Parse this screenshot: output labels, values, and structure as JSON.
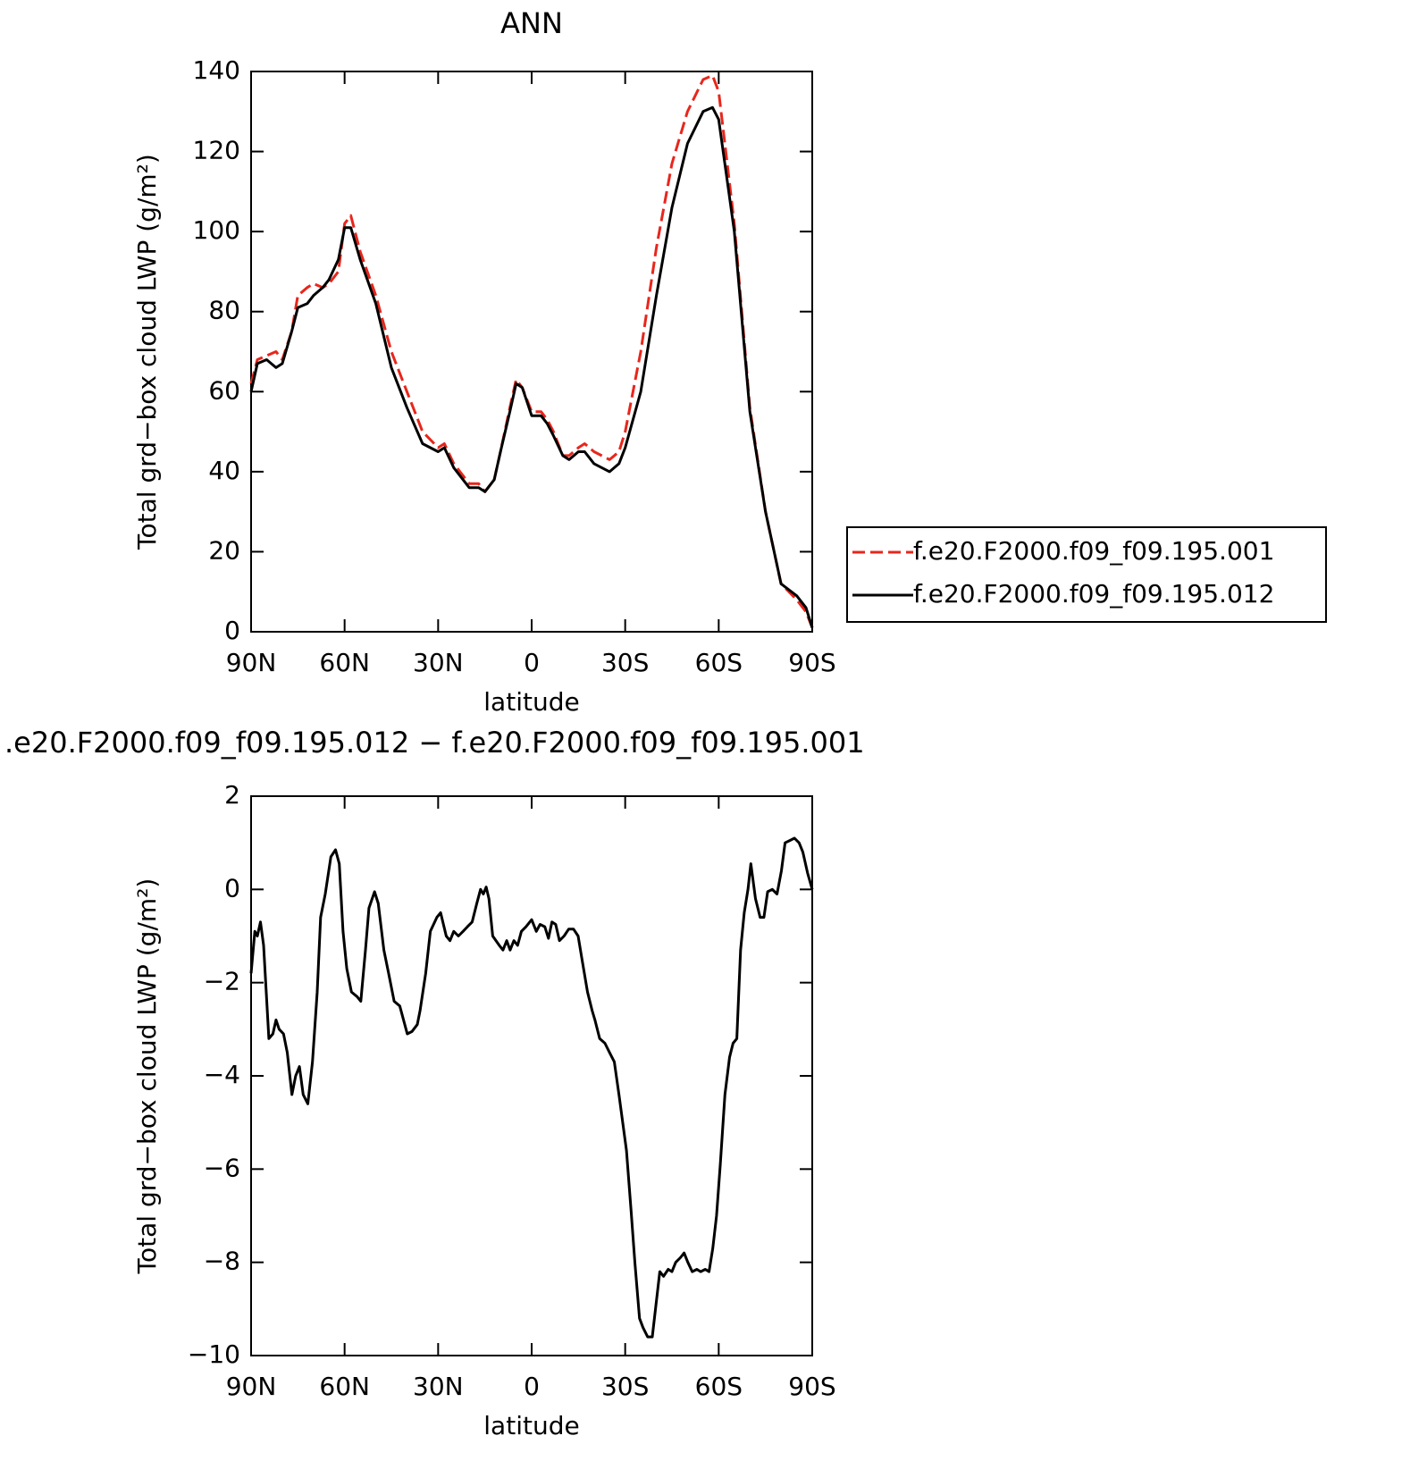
{
  "chart_data": [
    {
      "type": "line",
      "title": "ANN",
      "xlabel": "latitude",
      "ylabel": "Total grd−box cloud LWP (g/m²)",
      "x": [
        90,
        88,
        85,
        82,
        80,
        77,
        75,
        72,
        70,
        67,
        65,
        62,
        60,
        58,
        55,
        50,
        45,
        40,
        35,
        30,
        28,
        25,
        20,
        17,
        15,
        12,
        10,
        7,
        5,
        3,
        0,
        -3,
        -5,
        -7,
        -10,
        -12,
        -15,
        -17,
        -20,
        -25,
        -28,
        -30,
        -35,
        -40,
        -45,
        -50,
        -55,
        -58,
        -60,
        -65,
        -70,
        -75,
        -80,
        -85,
        -88,
        -90
      ],
      "series": [
        {
          "name": "f.e20.F2000.f09_f09.195.001",
          "color": "#e8261c",
          "linestyle": "dashed",
          "values": [
            62,
            68,
            69,
            70,
            68,
            75,
            84,
            86,
            87,
            86,
            87,
            90,
            102,
            104,
            95,
            84,
            70,
            60,
            50,
            46,
            47,
            42,
            37,
            37,
            35,
            38,
            45,
            56,
            63,
            61,
            55,
            55,
            53,
            50,
            44,
            44,
            46,
            47,
            45,
            43,
            45,
            50,
            70,
            96,
            117,
            130,
            138,
            139,
            135,
            102,
            56,
            30,
            12,
            8,
            5,
            1
          ]
        },
        {
          "name": "f.e20.F2000.f09_f09.195.012",
          "color": "#000000",
          "linestyle": "solid",
          "values": [
            60,
            67,
            68,
            66,
            67,
            75,
            81,
            82,
            84,
            86,
            88,
            93,
            101,
            101,
            93,
            82,
            66,
            56,
            47,
            45,
            46,
            41,
            36,
            36,
            35,
            38,
            45,
            55,
            62,
            61,
            54,
            54,
            52,
            49,
            44,
            43,
            45,
            45,
            42,
            40,
            42,
            46,
            60,
            84,
            106,
            122,
            130,
            131,
            128,
            100,
            55,
            30,
            12,
            9,
            6,
            1
          ]
        }
      ],
      "xlim": [
        90,
        -90
      ],
      "xticks": [
        {
          "value": 90,
          "label": "90N"
        },
        {
          "value": 60,
          "label": "60N"
        },
        {
          "value": 30,
          "label": "30N"
        },
        0,
        {
          "value": -30,
          "label": "30S"
        },
        {
          "value": -60,
          "label": "60S"
        },
        {
          "value": -90,
          "label": "90S"
        }
      ],
      "ylim": [
        0,
        140
      ],
      "yticks": [
        0,
        20,
        40,
        60,
        80,
        100,
        120,
        140
      ],
      "legend": "right"
    },
    {
      "type": "line",
      "title": ".e20.F2000.f09_f09.195.012 − f.e20.F2000.f09_f09.195.001",
      "xlabel": "latitude",
      "ylabel": "Total grd−box cloud LWP (g/m²)",
      "x": [
        90,
        88.8,
        88,
        87,
        86,
        84.3,
        83,
        82,
        81,
        79.6,
        78.4,
        76.9,
        75.7,
        74.5,
        73.3,
        71.8,
        70.3,
        68.8,
        67.7,
        66.2,
        64.4,
        62.9,
        61.7,
        60.5,
        59.3,
        57.8,
        56,
        54.8,
        53.3,
        52.2,
        50.4,
        49.2,
        47.4,
        45.9,
        44.1,
        42.3,
        41.1,
        39.9,
        38.4,
        36.7,
        35.8,
        34,
        32.5,
        30.4,
        29.2,
        27.4,
        26.2,
        25,
        23.5,
        22,
        20.6,
        19.1,
        17.6,
        16.4,
        15.5,
        14.6,
        13.7,
        12.5,
        10.4,
        9.2,
        8,
        6.9,
        5.7,
        4.5,
        3.3,
        1.8,
        0,
        -1.5,
        -2.7,
        -4.2,
        -5.4,
        -6.5,
        -7.7,
        -8.9,
        -10.4,
        -11.9,
        -13.4,
        -14.9,
        -16.4,
        -17.9,
        -19.4,
        -20.3,
        -21.8,
        -23.5,
        -25,
        -26.5,
        -28,
        -29.2,
        -30.4,
        -31.9,
        -33.1,
        -34.6,
        -35.7,
        -37.2,
        -38.7,
        -39.9,
        -41.1,
        -42.3,
        -43.8,
        -45,
        -46.2,
        -47.7,
        -48.9,
        -50.1,
        -51.5,
        -53,
        -54.2,
        -55.7,
        -56.9,
        -58.1,
        -59.3,
        -60.5,
        -62,
        -63.5,
        -64.6,
        -65.8,
        -67,
        -68.2,
        -69.4,
        -70.3,
        -71.8,
        -73.3,
        -74.5,
        -75.7,
        -77.2,
        -78.7,
        -80.1,
        -81.3,
        -82.8,
        -84.3,
        -85.8,
        -87,
        -88.5,
        -90
      ],
      "series": [
        {
          "color": "#000000",
          "linestyle": "solid",
          "values": [
            -1.8,
            -0.9,
            -1,
            -0.7,
            -1.2,
            -3.2,
            -3.1,
            -2.8,
            -3,
            -3.1,
            -3.5,
            -4.4,
            -4,
            -3.8,
            -4.4,
            -4.6,
            -3.7,
            -2.2,
            -0.6,
            -0.1,
            0.7,
            0.85,
            0.55,
            -0.9,
            -1.7,
            -2.2,
            -2.3,
            -2.4,
            -1.3,
            -0.4,
            -0.05,
            -0.3,
            -1.3,
            -1.8,
            -2.4,
            -2.5,
            -2.8,
            -3.1,
            -3.05,
            -2.9,
            -2.6,
            -1.8,
            -0.9,
            -0.6,
            -0.5,
            -1,
            -1.1,
            -0.9,
            -1,
            -0.9,
            -0.8,
            -0.7,
            -0.3,
            0,
            -0.1,
            0.05,
            -0.2,
            -1,
            -1.2,
            -1.3,
            -1.1,
            -1.3,
            -1.1,
            -1.2,
            -0.9,
            -0.8,
            -0.65,
            -0.9,
            -0.75,
            -0.8,
            -1.05,
            -0.7,
            -0.75,
            -1.1,
            -1,
            -0.85,
            -0.85,
            -1,
            -1.6,
            -2.2,
            -2.6,
            -2.8,
            -3.2,
            -3.3,
            -3.5,
            -3.7,
            -4.4,
            -5,
            -5.6,
            -6.9,
            -8,
            -9.2,
            -9.4,
            -9.6,
            -9.6,
            -8.9,
            -8.2,
            -8.3,
            -8.15,
            -8.2,
            -8,
            -7.9,
            -7.8,
            -8,
            -8.2,
            -8.15,
            -8.2,
            -8.15,
            -8.2,
            -7.7,
            -7,
            -5.9,
            -4.4,
            -3.6,
            -3.3,
            -3.2,
            -1.3,
            -0.5,
            0,
            0.55,
            -0.2,
            -0.6,
            -0.6,
            -0.05,
            0,
            -0.1,
            0.4,
            1,
            1.05,
            1.1,
            1,
            0.8,
            0.35,
            0
          ]
        }
      ],
      "xlim": [
        90,
        -90
      ],
      "xticks": [
        {
          "value": 90,
          "label": "90N"
        },
        {
          "value": 60,
          "label": "60N"
        },
        {
          "value": 30,
          "label": "30N"
        },
        0,
        {
          "value": -30,
          "label": "30S"
        },
        {
          "value": -60,
          "label": "60S"
        },
        {
          "value": -90,
          "label": "90S"
        }
      ],
      "ylim": [
        -10,
        2
      ],
      "yticks": [
        {
          "value": -10,
          "label": "−10"
        },
        {
          "value": -8,
          "label": "−8"
        },
        {
          "value": -6,
          "label": "−6"
        },
        {
          "value": -4,
          "label": "−4"
        },
        {
          "value": -2,
          "label": "−2"
        },
        0,
        2
      ]
    }
  ]
}
